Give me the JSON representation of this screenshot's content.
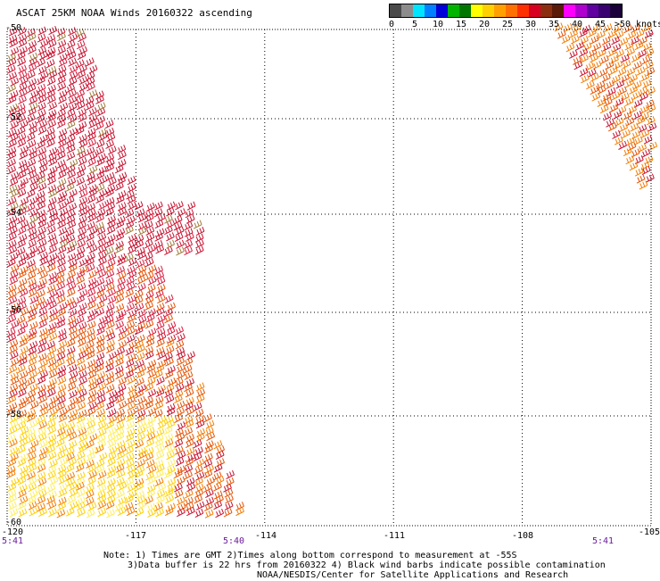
{
  "title": "ASCAT 25KM NOAA Winds 20160322 ascending",
  "legend": {
    "labels": [
      "0",
      "5",
      "10",
      "15",
      "20",
      "25",
      "30",
      "35",
      "40",
      "45",
      ">50 knots"
    ],
    "colors": [
      "#4a4a4a",
      "#8c8c8c",
      "#00e5ff",
      "#0080ff",
      "#0000d8",
      "#00b400",
      "#007800",
      "#ffff00",
      "#ffd000",
      "#ffa000",
      "#ff7000",
      "#ff3000",
      "#d80020",
      "#8b2e10",
      "#5a1a08",
      "#ff00ff",
      "#b000d0",
      "#6000a0",
      "#3a0070",
      "#1a003a"
    ]
  },
  "map": {
    "lat_labels": [
      "-50",
      "-52",
      "-54",
      "-56",
      "-58",
      "-60"
    ],
    "lon_labels": [
      "-120",
      "-117",
      "-114",
      "-111",
      "-108",
      "-105"
    ],
    "times": [
      "5:41",
      "5:40",
      "5:41"
    ],
    "lat_range": [
      -60,
      -50
    ],
    "lon_range": [
      -120,
      -105
    ],
    "grid": "dotted",
    "barb_colors": [
      "#c8102e",
      "#d81b3c",
      "#e65100",
      "#f57c00",
      "#ffd000",
      "#ffee58",
      "#9e7c3a",
      "#2e7d32"
    ]
  },
  "notes": {
    "line1": "Note: 1) Times are GMT 2)Times along bottom correspond to measurement at -55S",
    "line2": "3)Data buffer is 22 hrs from 20160322 4) Black wind barbs indicate possible contamination",
    "line3": "NOAA/NESDIS/Center for Satellite Applications and Research"
  }
}
